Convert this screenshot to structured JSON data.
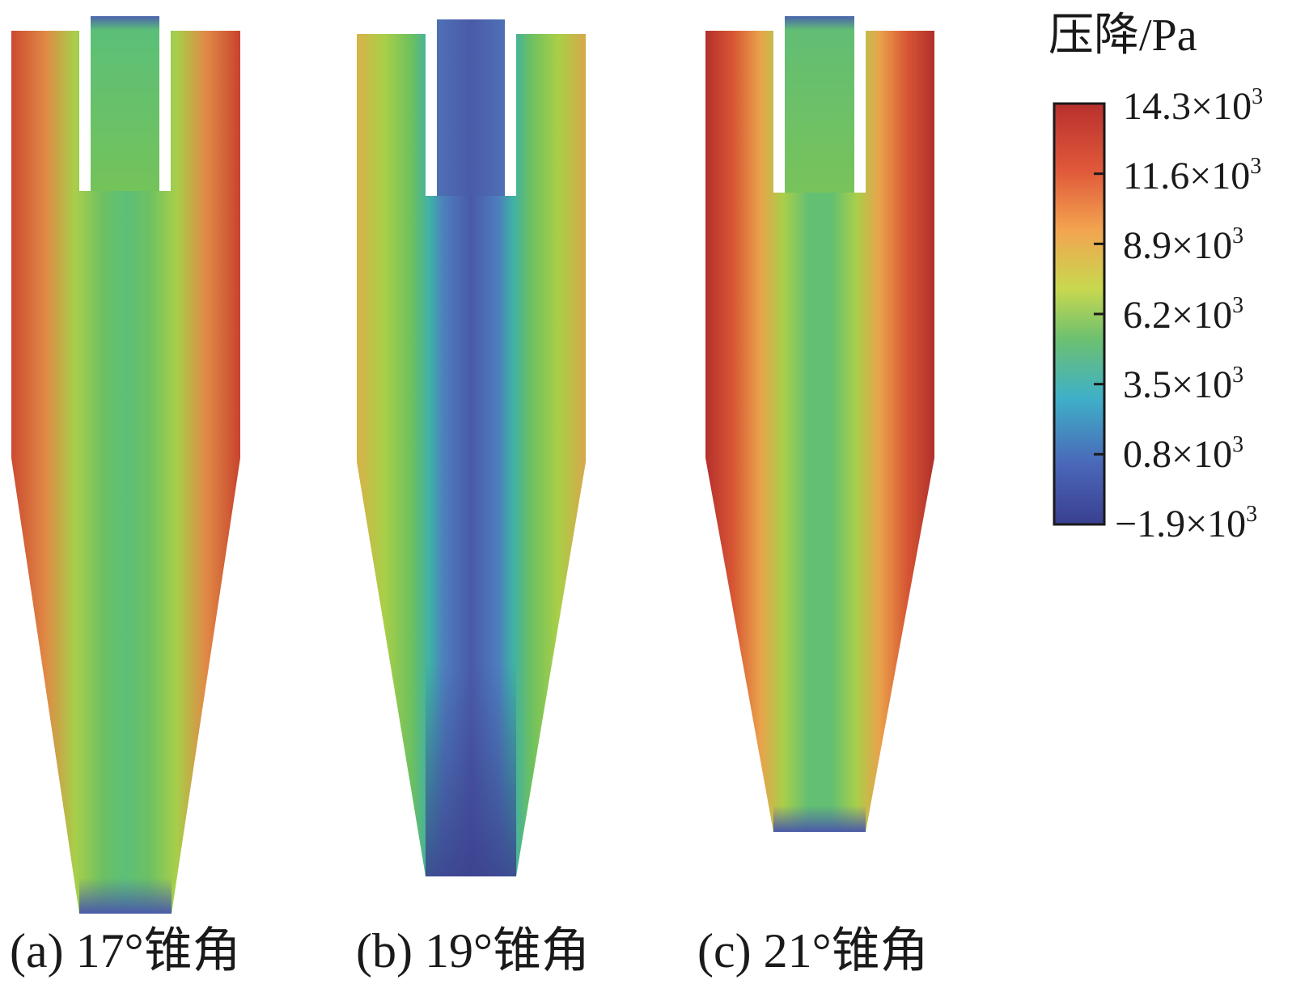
{
  "legend": {
    "title": "压降/Pa",
    "ticks": [
      "14.3",
      "11.6",
      "8.9",
      "6.2",
      "3.5",
      "0.8",
      "−1.9"
    ],
    "tick_values": [
      14.3,
      11.6,
      8.9,
      6.2,
      3.5,
      0.8,
      -1.9
    ],
    "exponent_prefix": "×10",
    "exponent": "3",
    "range_kpa": [
      -1.9,
      14.3
    ],
    "colormap": [
      "#3a3f8f",
      "#4a66b8",
      "#3fb0c8",
      "#6cc070",
      "#c8d84f",
      "#f3a450",
      "#e0593a",
      "#b8302d"
    ]
  },
  "panels": [
    {
      "caption": "(a) 17°锥角",
      "cone_angle": 17
    },
    {
      "caption": "(b) 19°锥角",
      "cone_angle": 19
    },
    {
      "caption": "(c) 21°锥角",
      "cone_angle": 21
    }
  ],
  "colors": {
    "dark_blue": "#3b428f",
    "blue": "#4d63ad",
    "teal": "#3db6b0",
    "green": "#72c152",
    "yellow_green": "#c8d24a",
    "orange": "#eea04c",
    "red_orange": "#dd5a35",
    "red": "#b6302c"
  }
}
